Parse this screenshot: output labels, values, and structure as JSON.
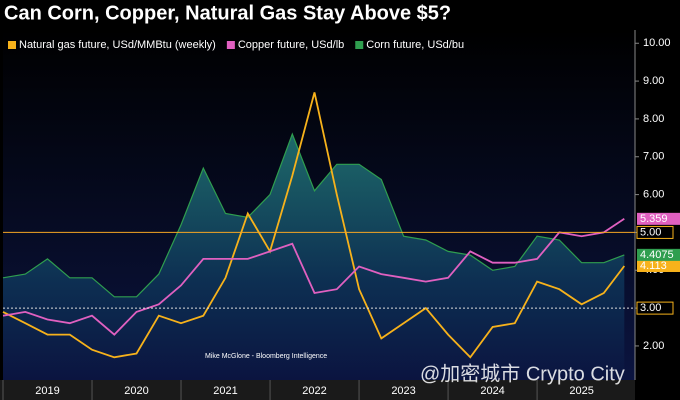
{
  "chart_data": {
    "type": "line",
    "title": "Can Corn, Copper, Natural Gas Stay Above $5?",
    "source": "Mike McGlone - Bloomberg Intelligence",
    "watermark": "@加密城市 Crypto City",
    "x": [
      2019,
      2019.25,
      2019.5,
      2019.75,
      2020,
      2020.25,
      2020.5,
      2020.75,
      2021,
      2021.25,
      2021.5,
      2021.75,
      2022,
      2022.25,
      2022.5,
      2022.75,
      2023,
      2023.25,
      2023.5,
      2023.75,
      2024,
      2024.25,
      2024.5,
      2024.75,
      2025,
      2025.25,
      2025.5,
      2025.75,
      2025.98
    ],
    "xlim": [
      2019,
      2026.1
    ],
    "xticks": [
      {
        "value": 2019.5,
        "label": "2019"
      },
      {
        "value": 2020.5,
        "label": "2020"
      },
      {
        "value": 2021.5,
        "label": "2021"
      },
      {
        "value": 2022.5,
        "label": "2022"
      },
      {
        "value": 2023.5,
        "label": "2023"
      },
      {
        "value": 2024.5,
        "label": "2024"
      },
      {
        "value": 2025.5,
        "label": "2025"
      }
    ],
    "ylim": [
      1.1,
      10.35
    ],
    "yticks": [
      {
        "value": 2,
        "label": "2.00"
      },
      {
        "value": 3,
        "label": "3.00"
      },
      {
        "value": 4,
        "label": "4.00"
      },
      {
        "value": 5,
        "label": "5.00"
      },
      {
        "value": 6,
        "label": "6.00"
      },
      {
        "value": 7,
        "label": "7.00"
      },
      {
        "value": 8,
        "label": "8.00"
      },
      {
        "value": 9,
        "label": "9.00"
      },
      {
        "value": 10,
        "label": "10.00"
      }
    ],
    "reference_lines": [
      {
        "value": 5,
        "label": "5.00",
        "color": "#f5a623",
        "style": "solid"
      },
      {
        "value": 3,
        "label": "3.00",
        "color": "#dddddd",
        "style": "dotted"
      }
    ],
    "series": [
      {
        "name": "Natural gas future, USd/MMBtu (weekly)",
        "color": "#f7b21b",
        "area": false,
        "values": [
          2.9,
          2.6,
          2.3,
          2.3,
          1.9,
          1.7,
          1.8,
          2.8,
          2.6,
          2.8,
          3.8,
          5.5,
          4.5,
          6.5,
          8.7,
          6.0,
          3.5,
          2.2,
          2.6,
          3.0,
          2.3,
          1.7,
          2.5,
          2.6,
          3.7,
          3.5,
          3.1,
          3.4,
          4.113
        ]
      },
      {
        "name": "Copper future, USd/lb",
        "color": "#e060c0",
        "area": false,
        "values": [
          2.8,
          2.9,
          2.7,
          2.6,
          2.8,
          2.3,
          2.9,
          3.1,
          3.6,
          4.3,
          4.3,
          4.3,
          4.5,
          4.7,
          3.4,
          3.5,
          4.1,
          3.9,
          3.8,
          3.7,
          3.8,
          4.5,
          4.2,
          4.2,
          4.3,
          5.0,
          4.9,
          5.0,
          5.359
        ]
      },
      {
        "name": "Corn future, USd/bu",
        "color": "#2f9e4f",
        "area": true,
        "values": [
          3.8,
          3.9,
          4.3,
          3.8,
          3.8,
          3.3,
          3.3,
          3.9,
          5.2,
          6.7,
          5.5,
          5.4,
          6.0,
          7.6,
          6.1,
          6.8,
          6.8,
          6.4,
          4.9,
          4.8,
          4.5,
          4.4,
          4.0,
          4.1,
          4.9,
          4.8,
          4.2,
          4.2,
          4.4075
        ]
      }
    ]
  }
}
